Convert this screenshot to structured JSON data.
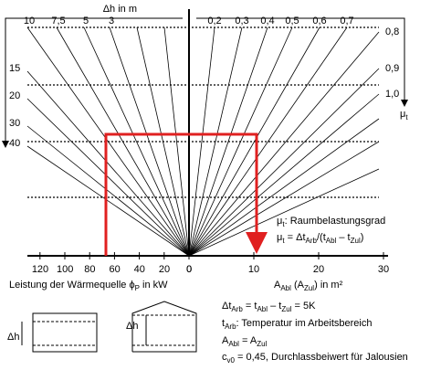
{
  "diagram": {
    "dh_axis": "Δh in m",
    "dh_top_labels": [
      "10",
      "7,5",
      "5",
      "3"
    ],
    "dh_side_labels": [
      "15",
      "20",
      "30",
      "40"
    ],
    "mu_top_labels": [
      "0,2",
      "0,3",
      "0,4",
      "0,5",
      "0,6",
      "0,7"
    ],
    "mu_side_labels": [
      "0,8",
      "0,9",
      "1,0"
    ],
    "mu_axis": [
      "μ",
      "t"
    ],
    "legend_1": [
      "μ",
      "t",
      ": Raumbelastungsgrad"
    ],
    "legend_2": [
      "μ",
      "t",
      " = Δt",
      "Arb",
      "/(t",
      "Abl",
      " – t",
      "Zul",
      ")"
    ],
    "left_ticks": [
      "120",
      "100",
      "80",
      "60",
      "40",
      "20",
      "0"
    ],
    "right_ticks": [
      "0",
      "10",
      "20",
      "30"
    ],
    "left_axis_label": [
      "Leistung der Wärmequelle ϕ",
      "P",
      " in kW"
    ],
    "right_axis_label": [
      "A",
      "Abl",
      " (A",
      "Zul",
      ") in m²"
    ],
    "icon_label": "Δh",
    "notes": [
      [
        "Δt",
        "Arb",
        " = t",
        "Abl",
        " – t",
        "Zul",
        " = 5K"
      ],
      [
        "t",
        "Arb",
        ": Temperatur im Arbeitsbereich"
      ],
      [
        "A",
        "Abl",
        " = A",
        "Zul"
      ],
      [
        "c",
        "v0",
        " = 0,45, Durchlassbeiwert für Jalousien"
      ]
    ]
  }
}
